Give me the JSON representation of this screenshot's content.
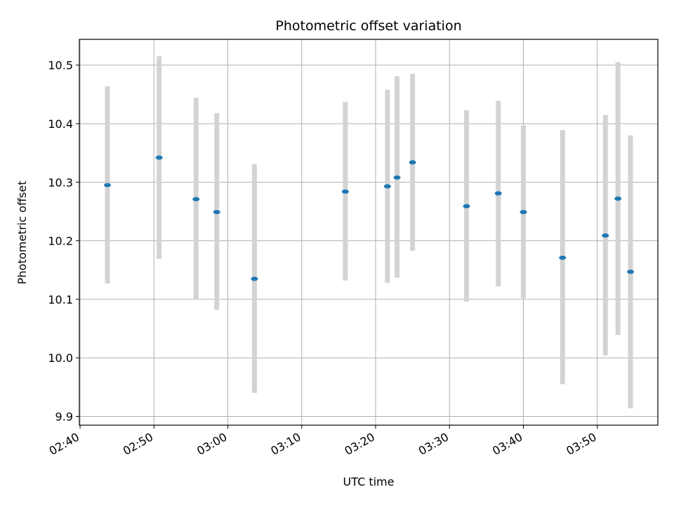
{
  "chart_data": {
    "type": "scatter",
    "title": "Photometric offset variation",
    "xlabel": "UTC time",
    "ylabel": "Photometric offset",
    "x_ticks": [
      "02:40",
      "02:50",
      "03:00",
      "03:10",
      "03:20",
      "03:30",
      "03:40",
      "03:50"
    ],
    "y_ticks": [
      9.9,
      10.0,
      10.1,
      10.2,
      10.3,
      10.4,
      10.5
    ],
    "xlim": [
      "02:39.9",
      "03:58.2"
    ],
    "ylim": [
      9.885,
      10.544
    ],
    "grid": true,
    "errorbar_color": "#d3d3d3",
    "marker_color": "#1f77b4",
    "series": [
      {
        "x": [
          "02:43.7",
          "02:50.7",
          "02:55.7",
          "02:58.5",
          "03:03.6",
          "03:15.9",
          "03:21.6",
          "03:22.9",
          "03:25.0",
          "03:32.3",
          "03:36.6",
          "03:40.0",
          "03:45.3",
          "03:51.1",
          "03:52.8",
          "03:54.5"
        ],
        "y": [
          10.295,
          10.342,
          10.271,
          10.249,
          10.135,
          10.284,
          10.293,
          10.308,
          10.334,
          10.259,
          10.281,
          10.249,
          10.171,
          10.209,
          10.272,
          10.147
        ],
        "y_low": [
          10.127,
          10.169,
          10.099,
          10.082,
          9.94,
          10.132,
          10.128,
          10.137,
          10.183,
          10.096,
          10.122,
          10.102,
          9.955,
          10.004,
          10.039,
          9.914
        ],
        "y_high": [
          10.464,
          10.515,
          10.444,
          10.418,
          10.331,
          10.437,
          10.458,
          10.481,
          10.485,
          10.423,
          10.439,
          10.397,
          10.389,
          10.415,
          10.505,
          10.38
        ]
      }
    ]
  }
}
